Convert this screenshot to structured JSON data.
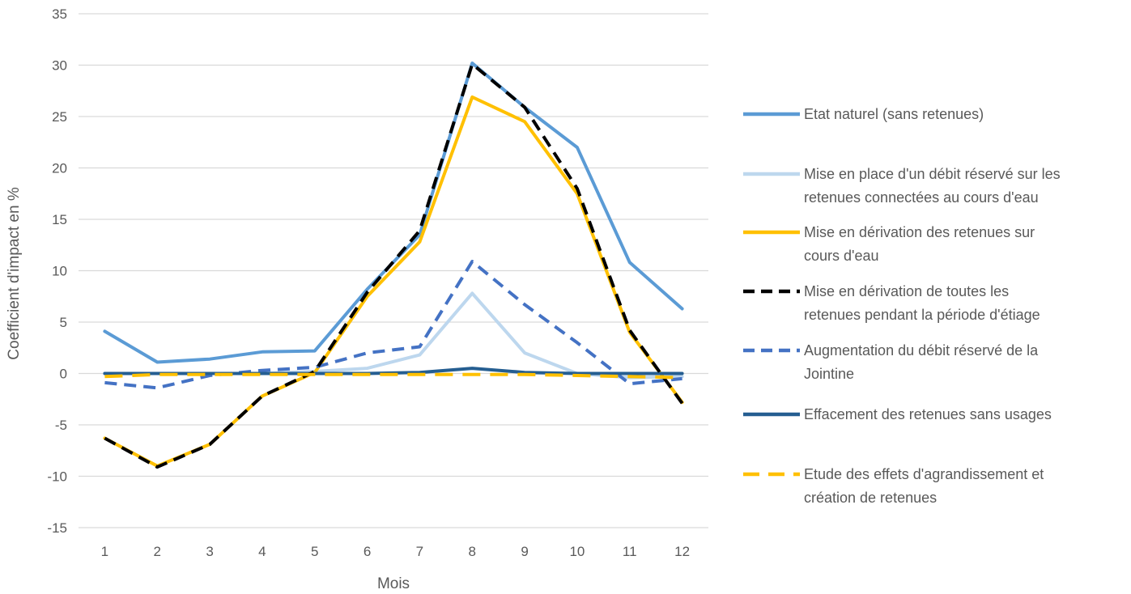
{
  "chart_data": {
    "type": "line",
    "xlabel": "Mois",
    "ylabel": "Coefficient d'impact en %",
    "x": [
      1,
      2,
      3,
      4,
      5,
      6,
      7,
      8,
      9,
      10,
      11,
      12
    ],
    "xticks": [
      "1",
      "2",
      "3",
      "4",
      "5",
      "6",
      "7",
      "8",
      "9",
      "10",
      "11",
      "12"
    ],
    "ylim": [
      -15,
      35
    ],
    "yticks": [
      35,
      30,
      25,
      20,
      15,
      10,
      5,
      0,
      -5,
      -10,
      -15
    ],
    "grid": "horizontal",
    "legend_position": "right",
    "series": [
      {
        "name": "Etat naturel (sans retenues)",
        "legend_lines": [
          "Etat naturel (sans retenues)"
        ],
        "color": "#5b9bd5",
        "dash": "solid",
        "values": [
          4.1,
          1.1,
          1.4,
          2.1,
          2.2,
          8.2,
          13.5,
          30.2,
          25.9,
          22.0,
          10.8,
          6.3
        ]
      },
      {
        "name": "Mise en place d'un débit réservé sur les retenues connectées au cours d'eau",
        "legend_lines": [
          "Mise en place d'un débit réservé sur les",
          "retenues connectées au cours d'eau"
        ],
        "color": "#bdd7ee",
        "dash": "solid",
        "values": [
          0,
          0,
          0,
          0,
          0.2,
          0.5,
          1.8,
          7.8,
          2.0,
          0,
          -0.4,
          -0.3
        ]
      },
      {
        "name": "Mise en dérivation des retenues sur cours d'eau",
        "legend_lines": [
          "Mise en dérivation des retenues sur",
          "cours d'eau"
        ],
        "color": "#ffc000",
        "dash": "solid",
        "values": [
          -6.3,
          -9.0,
          -6.9,
          -2.2,
          0.1,
          7.5,
          12.8,
          26.9,
          24.5,
          17.5,
          4.0,
          -2.8
        ]
      },
      {
        "name": "Mise en dérivation de toutes les retenues pendant la période d'étiage",
        "legend_lines": [
          " Mise en dérivation de toutes les",
          "retenues pendant la période d'étiage"
        ],
        "color": "#000000",
        "dash": "dashed",
        "values": [
          -6.3,
          -9.1,
          -6.9,
          -2.2,
          0.2,
          7.9,
          13.9,
          30.1,
          25.9,
          18.0,
          4.2,
          -2.9
        ]
      },
      {
        "name": "Augmentation du débit réservé de la Jointine",
        "legend_lines": [
          "Augmentation du débit réservé de la",
          "Jointine"
        ],
        "color": "#4472c4",
        "dash": "dashed",
        "values": [
          -0.9,
          -1.4,
          -0.2,
          0.3,
          0.6,
          2.0,
          2.6,
          10.9,
          6.7,
          3.0,
          -1.0,
          -0.5
        ]
      },
      {
        "name": "Effacement des retenues sans usages",
        "legend_lines": [
          "Effacement des retenues sans usages"
        ],
        "color": "#255e91",
        "dash": "solid",
        "values": [
          0,
          0,
          0,
          0,
          0,
          0,
          0.1,
          0.5,
          0.1,
          0,
          0,
          0
        ]
      },
      {
        "name": "Etude des effets d'agrandissement et création de retenues",
        "legend_lines": [
          "Etude des effets d'agrandissement et",
          "création de retenues"
        ],
        "color": "#ffc000",
        "dash": "longdash",
        "values": [
          -0.3,
          -0.1,
          -0.1,
          -0.1,
          -0.1,
          -0.1,
          -0.1,
          -0.1,
          -0.1,
          -0.2,
          -0.3,
          -0.4
        ]
      }
    ]
  }
}
